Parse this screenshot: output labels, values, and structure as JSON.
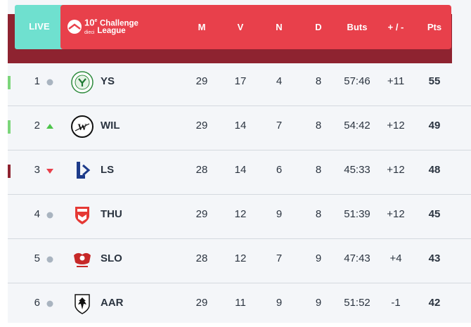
{
  "header": {
    "live_label": "LIVE",
    "league": {
      "num": "10",
      "sup": "e",
      "line1": "Challenge",
      "dieci": "dieci",
      "line2": "League"
    },
    "columns": [
      "M",
      "V",
      "N",
      "D",
      "Buts",
      "+ / -",
      "Pts"
    ]
  },
  "colors": {
    "qualification": "#7cd67b",
    "relegation": "#8e2330",
    "header": "#e8404b",
    "live": "#6fe0cf"
  },
  "rows": [
    {
      "rank": "1",
      "trend": "same",
      "crest": "ys-crest-icon",
      "team": "YS",
      "m": "29",
      "v": "17",
      "n": "4",
      "d": "8",
      "buts": "57:46",
      "diff": "+11",
      "pts": "55",
      "marker": "qualification"
    },
    {
      "rank": "2",
      "trend": "up",
      "crest": "wil-crest-icon",
      "team": "WIL",
      "m": "29",
      "v": "14",
      "n": "7",
      "d": "8",
      "buts": "54:42",
      "diff": "+12",
      "pts": "49",
      "marker": "qualification"
    },
    {
      "rank": "3",
      "trend": "down",
      "crest": "ls-crest-icon",
      "team": "LS",
      "m": "28",
      "v": "14",
      "n": "6",
      "d": "8",
      "buts": "45:33",
      "diff": "+12",
      "pts": "48",
      "marker": "relegation"
    },
    {
      "rank": "4",
      "trend": "same",
      "crest": "thu-crest-icon",
      "team": "THU",
      "m": "29",
      "v": "12",
      "n": "9",
      "d": "8",
      "buts": "51:39",
      "diff": "+12",
      "pts": "45",
      "marker": ""
    },
    {
      "rank": "5",
      "trend": "same",
      "crest": "slo-crest-icon",
      "team": "SLO",
      "m": "28",
      "v": "12",
      "n": "7",
      "d": "9",
      "buts": "47:43",
      "diff": "+4",
      "pts": "43",
      "marker": ""
    },
    {
      "rank": "6",
      "trend": "same",
      "crest": "aar-crest-icon",
      "team": "AAR",
      "m": "29",
      "v": "11",
      "n": "9",
      "d": "9",
      "buts": "51:52",
      "diff": "-1",
      "pts": "42",
      "marker": ""
    }
  ]
}
